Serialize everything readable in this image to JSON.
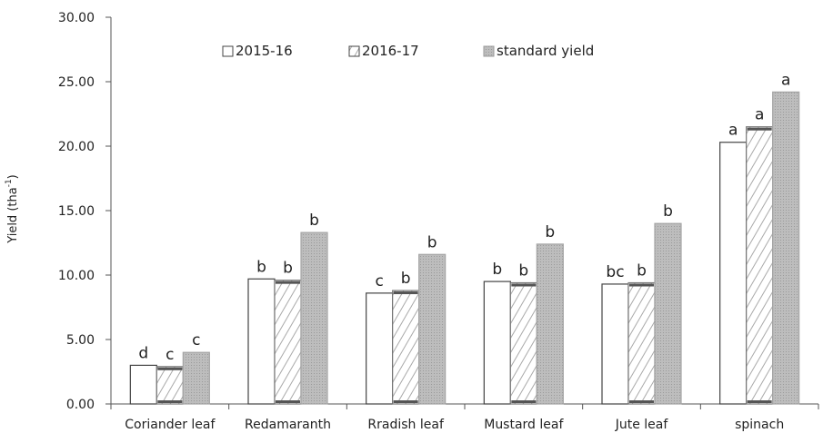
{
  "chart_data": {
    "type": "bar",
    "title": "",
    "xlabel": "",
    "ylabel": "Yield (tha",
    "ylabel_sup": "-1",
    "ylabel_close": ")",
    "ylim": [
      0,
      30
    ],
    "yticks": [
      "0.00",
      "5.00",
      "10.00",
      "15.00",
      "20.00",
      "25.00",
      "30.00"
    ],
    "grid": false,
    "legend_position": "top-center",
    "categories": [
      "Coriander leaf",
      "Redamaranth",
      "Rradish leaf",
      "Mustard leaf",
      "Jute leaf",
      "spinach"
    ],
    "series": [
      {
        "name": "2015-16",
        "values": [
          3.0,
          9.7,
          8.6,
          9.5,
          9.3,
          20.3
        ],
        "labels": [
          "d",
          "b",
          "c",
          "b",
          "bc",
          "a"
        ],
        "color": "#ffffff"
      },
      {
        "name": "2016-17",
        "values": [
          2.9,
          9.6,
          8.8,
          9.4,
          9.4,
          21.5
        ],
        "labels": [
          "c",
          "b",
          "b",
          "b",
          "b",
          "a"
        ],
        "color": "#ffffff"
      },
      {
        "name": "standard yield",
        "values": [
          4.0,
          13.3,
          11.6,
          12.4,
          14.0,
          24.2
        ],
        "labels": [
          "c",
          "b",
          "b",
          "b",
          "b",
          "a"
        ],
        "color": "#c0c0c0"
      }
    ]
  }
}
